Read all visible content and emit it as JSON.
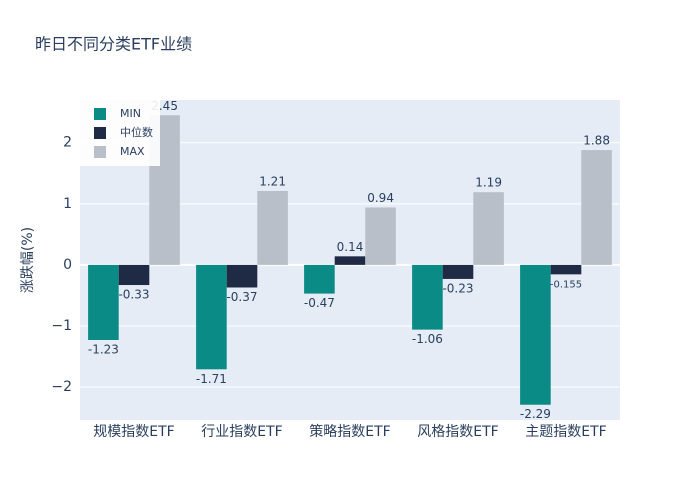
{
  "chart_data": {
    "type": "bar",
    "title": "昨日不同分类ETF业绩",
    "y_label": "涨跌幅(%)",
    "categories": [
      "规模指数ETF",
      "行业指数ETF",
      "策略指数ETF",
      "风格指数ETF",
      "主题指数ETF"
    ],
    "series": [
      {
        "name": "MIN",
        "color": "#0b8b86",
        "values": [
          -1.23,
          -1.71,
          -0.47,
          -1.06,
          -2.29
        ]
      },
      {
        "name": "中位数",
        "color": "#1f2a44",
        "values": [
          -0.33,
          -0.37,
          0.14,
          -0.23,
          -0.155
        ]
      },
      {
        "name": "MAX",
        "color": "#b8bfc8",
        "values": [
          2.45,
          1.21,
          0.94,
          1.19,
          1.88
        ]
      }
    ],
    "ylim": [
      -2.54,
      2.7
    ],
    "yticks": [
      {
        "value": -2,
        "label": "−2"
      },
      {
        "value": -1,
        "label": "−1"
      },
      0,
      1,
      2
    ],
    "grid": true,
    "legend": "top-left"
  }
}
